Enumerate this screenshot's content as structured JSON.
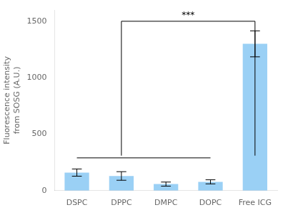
{
  "chart_data": {
    "type": "bar",
    "categories": [
      "DSPC",
      "DPPC",
      "DMPC",
      "DOPC",
      "Free ICG"
    ],
    "values": [
      160,
      130,
      58,
      78,
      1300
    ],
    "errors": [
      32,
      38,
      18,
      18,
      115
    ],
    "ylabel": "Fluorescence intensity\nfrom SOSG (A.U.)",
    "ylim": [
      0,
      1600
    ],
    "yticks": [
      0,
      500,
      1000,
      1500
    ],
    "grid": false,
    "brackets": [
      {
        "from": "DSPC",
        "to": "DOPC",
        "y": 290
      },
      {
        "from": "DPPC",
        "to": "Free ICG",
        "bottom": 310,
        "top": 1500
      }
    ],
    "annotations": [
      {
        "text": "***",
        "x": 2.5,
        "y": 1510
      }
    ]
  }
}
